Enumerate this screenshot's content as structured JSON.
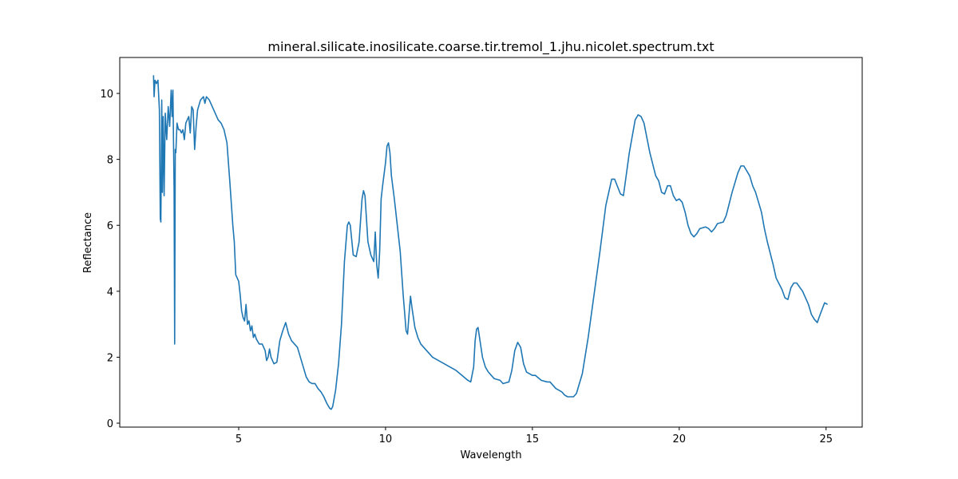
{
  "chart_data": {
    "type": "line",
    "title": "mineral.silicate.inosilicate.coarse.tir.tremol_1.jhu.nicolet.spectrum.txt",
    "x_label": "Wavelength",
    "y_label": "Reflectance",
    "color": "#1f77b4",
    "xlim": [
      0.95,
      26.23
    ],
    "ylim": [
      -0.12,
      11.09
    ],
    "xticks": [
      5,
      10,
      15,
      20,
      25
    ],
    "yticks": [
      0,
      2,
      4,
      6,
      8,
      10
    ],
    "grid": false,
    "x": [
      2.1,
      2.12,
      2.15,
      2.2,
      2.25,
      2.3,
      2.33,
      2.35,
      2.38,
      2.4,
      2.43,
      2.46,
      2.5,
      2.55,
      2.6,
      2.65,
      2.7,
      2.73,
      2.76,
      2.8,
      2.82,
      2.84,
      2.86,
      2.9,
      2.95,
      3.0,
      3.05,
      3.1,
      3.15,
      3.2,
      3.3,
      3.35,
      3.4,
      3.45,
      3.5,
      3.55,
      3.6,
      3.7,
      3.8,
      3.85,
      3.9,
      4.0,
      4.1,
      4.2,
      4.3,
      4.4,
      4.5,
      4.6,
      4.7,
      4.8,
      4.85,
      4.9,
      5.0,
      5.05,
      5.1,
      5.15,
      5.2,
      5.25,
      5.3,
      5.35,
      5.4,
      5.45,
      5.5,
      5.55,
      5.6,
      5.7,
      5.8,
      5.9,
      5.95,
      6.0,
      6.05,
      6.1,
      6.2,
      6.3,
      6.4,
      6.5,
      6.6,
      6.7,
      6.8,
      6.9,
      7.0,
      7.1,
      7.2,
      7.3,
      7.4,
      7.5,
      7.6,
      7.7,
      7.8,
      7.9,
      8.0,
      8.1,
      8.15,
      8.2,
      8.3,
      8.4,
      8.5,
      8.6,
      8.7,
      8.75,
      8.8,
      8.9,
      9.0,
      9.1,
      9.2,
      9.25,
      9.3,
      9.4,
      9.5,
      9.6,
      9.65,
      9.7,
      9.75,
      9.8,
      9.85,
      9.9,
      10.0,
      10.05,
      10.1,
      10.15,
      10.2,
      10.3,
      10.4,
      10.5,
      10.6,
      10.7,
      10.75,
      10.8,
      10.85,
      10.9,
      11.0,
      11.1,
      11.2,
      11.4,
      11.6,
      11.8,
      12.0,
      12.2,
      12.4,
      12.6,
      12.8,
      12.9,
      13.0,
      13.05,
      13.1,
      13.15,
      13.2,
      13.3,
      13.4,
      13.5,
      13.7,
      13.9,
      14.0,
      14.2,
      14.3,
      14.4,
      14.5,
      14.6,
      14.7,
      14.8,
      15.0,
      15.1,
      15.3,
      15.5,
      15.6,
      15.8,
      16.0,
      16.1,
      16.2,
      16.4,
      16.5,
      16.7,
      16.9,
      17.1,
      17.3,
      17.5,
      17.7,
      17.8,
      18.0,
      18.1,
      18.3,
      18.5,
      18.6,
      18.7,
      18.8,
      19.0,
      19.2,
      19.3,
      19.4,
      19.5,
      19.6,
      19.7,
      19.8,
      19.9,
      20.0,
      20.1,
      20.2,
      20.3,
      20.4,
      20.5,
      20.6,
      20.7,
      20.9,
      21.0,
      21.1,
      21.2,
      21.3,
      21.5,
      21.6,
      21.8,
      22.0,
      22.1,
      22.2,
      22.4,
      22.5,
      22.6,
      22.8,
      22.9,
      23.0,
      23.2,
      23.3,
      23.5,
      23.6,
      23.7,
      23.8,
      23.9,
      24.0,
      24.2,
      24.4,
      24.5,
      24.6,
      24.7,
      24.8,
      24.95,
      25.05
    ],
    "values": [
      10.55,
      9.9,
      10.4,
      10.3,
      10.4,
      9.5,
      6.2,
      6.1,
      9.8,
      7.0,
      9.3,
      6.9,
      9.4,
      8.6,
      9.6,
      9.0,
      10.1,
      9.3,
      10.1,
      7.1,
      2.4,
      8.3,
      8.2,
      9.1,
      8.9,
      8.9,
      8.8,
      8.9,
      8.6,
      9.1,
      9.3,
      8.8,
      9.6,
      9.5,
      8.3,
      9.0,
      9.5,
      9.8,
      9.9,
      9.7,
      9.9,
      9.8,
      9.6,
      9.4,
      9.2,
      9.1,
      8.9,
      8.5,
      7.3,
      6.0,
      5.5,
      4.5,
      4.3,
      3.9,
      3.4,
      3.2,
      3.1,
      3.6,
      3.0,
      3.1,
      2.8,
      2.95,
      2.6,
      2.7,
      2.55,
      2.4,
      2.4,
      2.2,
      1.9,
      2.0,
      2.25,
      2.0,
      1.8,
      1.85,
      2.5,
      2.8,
      3.05,
      2.7,
      2.5,
      2.4,
      2.3,
      2.0,
      1.7,
      1.4,
      1.25,
      1.2,
      1.2,
      1.05,
      0.95,
      0.8,
      0.6,
      0.45,
      0.42,
      0.5,
      1.0,
      1.8,
      3.0,
      4.9,
      6.0,
      6.1,
      6.0,
      5.1,
      5.05,
      5.5,
      6.8,
      7.05,
      6.9,
      5.5,
      5.1,
      4.9,
      5.8,
      4.8,
      4.4,
      5.2,
      6.8,
      7.2,
      7.9,
      8.4,
      8.5,
      8.2,
      7.5,
      6.8,
      6.0,
      5.2,
      3.9,
      2.8,
      2.7,
      3.3,
      3.85,
      3.5,
      2.9,
      2.6,
      2.4,
      2.2,
      2.0,
      1.9,
      1.8,
      1.7,
      1.6,
      1.45,
      1.3,
      1.25,
      1.7,
      2.5,
      2.85,
      2.9,
      2.6,
      2.0,
      1.7,
      1.55,
      1.35,
      1.3,
      1.2,
      1.25,
      1.6,
      2.2,
      2.45,
      2.3,
      1.8,
      1.55,
      1.45,
      1.45,
      1.3,
      1.25,
      1.25,
      1.05,
      0.95,
      0.85,
      0.8,
      0.8,
      0.9,
      1.5,
      2.6,
      3.9,
      5.2,
      6.6,
      7.4,
      7.4,
      6.95,
      6.9,
      8.2,
      9.2,
      9.35,
      9.3,
      9.1,
      8.2,
      7.5,
      7.35,
      7.0,
      6.95,
      7.2,
      7.2,
      6.9,
      6.75,
      6.8,
      6.7,
      6.4,
      6.0,
      5.75,
      5.65,
      5.75,
      5.9,
      5.95,
      5.9,
      5.8,
      5.9,
      6.05,
      6.1,
      6.3,
      7.0,
      7.6,
      7.8,
      7.8,
      7.5,
      7.2,
      7.0,
      6.4,
      5.9,
      5.5,
      4.8,
      4.4,
      4.05,
      3.8,
      3.75,
      4.1,
      4.25,
      4.25,
      4.0,
      3.6,
      3.3,
      3.15,
      3.05,
      3.3,
      3.65,
      3.6
    ]
  }
}
